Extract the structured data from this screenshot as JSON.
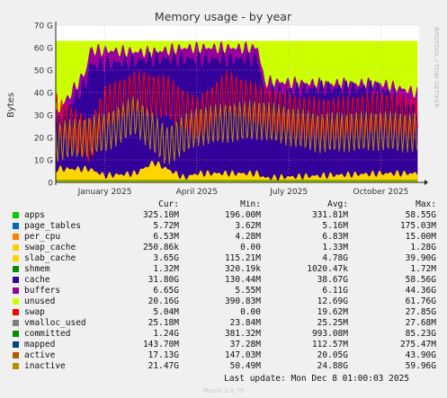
{
  "chart_data": {
    "type": "area",
    "title": "Memory usage - by year",
    "ylabel": "Bytes",
    "side_text": "RRDTOOL / TOBI OETIKER",
    "y_ticks": [
      "0",
      "10 G",
      "20 G",
      "30 G",
      "40 G",
      "50 G",
      "60 G",
      "70 G"
    ],
    "y_tick_values": [
      0,
      10,
      20,
      30,
      40,
      50,
      60,
      70
    ],
    "ylim": [
      0,
      70
    ],
    "x_ticks": [
      "January 2025",
      "April 2025",
      "July 2025",
      "October 2025"
    ],
    "x_tick_positions": [
      1,
      4,
      7,
      10
    ],
    "xlim": [
      -0.6,
      11.25
    ],
    "grid": true,
    "stack_order": [
      "apps",
      "page_tables",
      "per_cpu",
      "swap_cache",
      "slab_cache",
      "shmem",
      "cache",
      "buffers",
      "unused",
      "swap"
    ],
    "overlay_lines": [
      "vmalloc_used",
      "committed",
      "mapped",
      "active",
      "inactive"
    ],
    "colors": {
      "apps": "#00cc00",
      "page_tables": "#0066b3",
      "per_cpu": "#ff8000",
      "swap_cache": "#ffcc00",
      "slab_cache": "#ffd400",
      "shmem": "#008f00",
      "cache": "#330099",
      "buffers": "#990099",
      "unused": "#ccff00",
      "swap": "#ff0000",
      "vmalloc_used": "#808080",
      "committed": "#008f00",
      "mapped": "#00487d",
      "active": "#b35a00",
      "inactive": "#b38f00"
    },
    "series_approx": [
      {
        "name": "slab_cache",
        "x": [
          -0.6,
          0.5,
          1.0,
          2.0,
          2.6,
          3.6,
          4.0,
          6.0,
          6.2,
          8.0,
          10.0,
          11.2
        ],
        "values": [
          6,
          6,
          3,
          4,
          9,
          2,
          4,
          4,
          2,
          3,
          4,
          4
        ]
      },
      {
        "name": "cache",
        "x": [
          -0.6,
          0.4,
          0.5,
          2.5,
          3.6,
          6.0,
          6.2,
          8.0,
          10.0,
          11.2
        ],
        "values": [
          25,
          45,
          52,
          55,
          55,
          55,
          40,
          42,
          42,
          32
        ]
      },
      {
        "name": "buffers",
        "x": [
          -0.6,
          0.4,
          0.5,
          2.5,
          3.6,
          6.0,
          6.2,
          8.0,
          10.0,
          11.2
        ],
        "values": [
          30,
          50,
          59,
          58,
          60,
          60,
          45,
          44,
          44,
          40
        ]
      },
      {
        "name": "unused",
        "x": [
          -0.6,
          11.2
        ],
        "values": [
          63,
          63
        ]
      },
      {
        "name": "swap",
        "x": [
          -0.6,
          0.5,
          1.0,
          2.0,
          3.0,
          4.0,
          5.0,
          6.0,
          7.0,
          8.0,
          9.0,
          10.0,
          11.2
        ],
        "values": [
          30,
          18,
          33,
          40,
          38,
          28,
          40,
          34,
          30,
          28,
          29,
          31,
          28
        ]
      },
      {
        "name": "inactive",
        "x": [
          -0.6,
          1.0,
          2.0,
          3.0,
          4.0,
          6.0,
          8.0,
          10.0,
          11.2
        ],
        "values": [
          18,
          22,
          30,
          16,
          25,
          28,
          22,
          23,
          22
        ]
      }
    ],
    "legend_headers": {
      "cur": "Cur:",
      "min": "Min:",
      "avg": "Avg:",
      "max": "Max:"
    },
    "legend": [
      {
        "name": "apps",
        "cur": "325.10M",
        "min": "196.00M",
        "avg": "331.81M",
        "max": "58.55G"
      },
      {
        "name": "page_tables",
        "cur": "5.72M",
        "min": "3.62M",
        "avg": "5.16M",
        "max": "175.03M"
      },
      {
        "name": "per_cpu",
        "cur": "6.53M",
        "min": "4.28M",
        "avg": "6.83M",
        "max": "15.00M"
      },
      {
        "name": "swap_cache",
        "cur": "250.86k",
        "min": "0.00",
        "avg": "1.33M",
        "max": "1.28G"
      },
      {
        "name": "slab_cache",
        "cur": "3.65G",
        "min": "115.21M",
        "avg": "4.78G",
        "max": "39.90G"
      },
      {
        "name": "shmem",
        "cur": "1.32M",
        "min": "320.19k",
        "avg": "1020.47k",
        "max": "1.72M"
      },
      {
        "name": "cache",
        "cur": "31.80G",
        "min": "130.44M",
        "avg": "38.67G",
        "max": "58.56G"
      },
      {
        "name": "buffers",
        "cur": "6.65G",
        "min": "5.55M",
        "avg": "6.11G",
        "max": "44.36G"
      },
      {
        "name": "unused",
        "cur": "20.16G",
        "min": "390.83M",
        "avg": "12.69G",
        "max": "61.76G"
      },
      {
        "name": "swap",
        "cur": "5.04M",
        "min": "0.00",
        "avg": "19.62M",
        "max": "27.85G"
      },
      {
        "name": "vmalloc_used",
        "cur": "25.18M",
        "min": "23.84M",
        "avg": "25.25M",
        "max": "27.68M"
      },
      {
        "name": "committed",
        "cur": "1.24G",
        "min": "381.32M",
        "avg": "993.08M",
        "max": "85.23G"
      },
      {
        "name": "mapped",
        "cur": "143.70M",
        "min": "37.28M",
        "avg": "112.57M",
        "max": "275.47M"
      },
      {
        "name": "active",
        "cur": "17.13G",
        "min": "147.03M",
        "avg": "20.05G",
        "max": "43.90G"
      },
      {
        "name": "inactive",
        "cur": "21.47G",
        "min": "50.49M",
        "avg": "24.88G",
        "max": "59.96G"
      }
    ],
    "last_update": "Last update: Mon Dec  8 01:00:03 2025",
    "footer": "Munin 2.0.75"
  }
}
